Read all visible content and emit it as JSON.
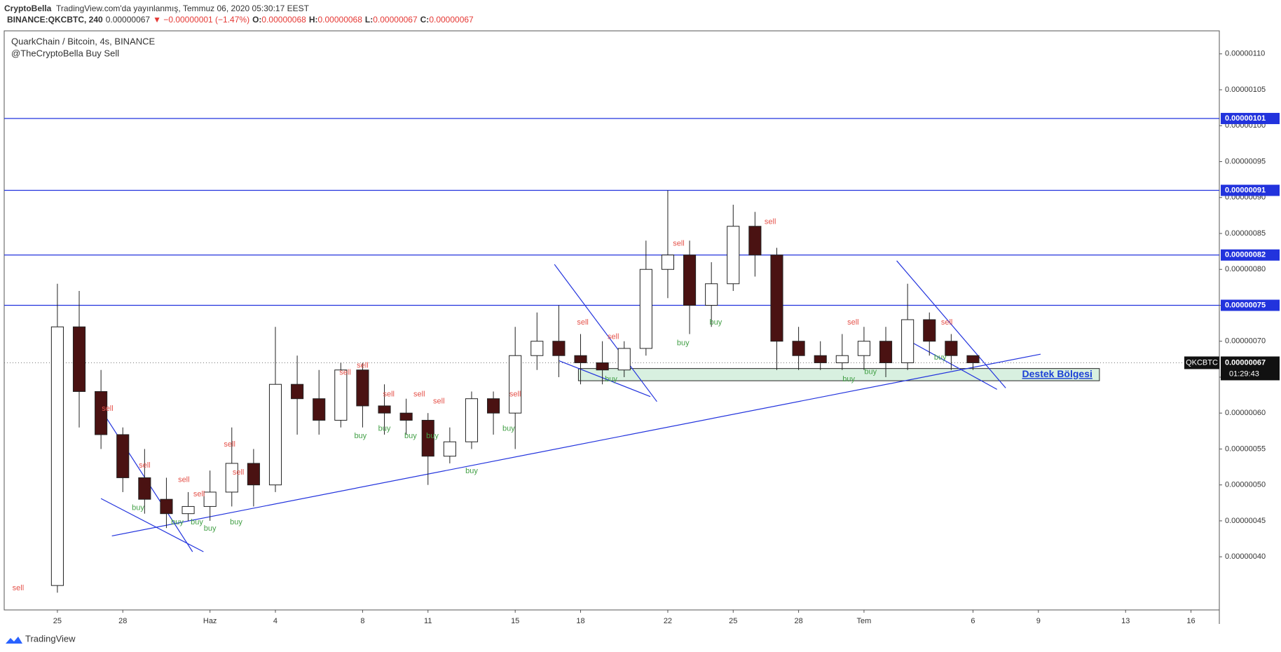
{
  "header": {
    "author": "CryptoBella",
    "published": "TradingView.com'da yayınlanmış, Temmuz 06, 2020 05:30:17 EEST",
    "symbol": "BINANCE:QKCBTC, 240",
    "price": "0.00000067",
    "change": "▼ −0.00000001 (−1.47%)",
    "ohlc": [
      {
        "k": "O:",
        "v": "0.00000068"
      },
      {
        "k": "H:",
        "v": "0.00000068"
      },
      {
        "k": "L:",
        "v": "0.00000067"
      },
      {
        "k": "C:",
        "v": "0.00000067"
      }
    ]
  },
  "chart_data": {
    "type": "candlestick",
    "title": "QuarkChain / Bitcoin, 4s, BINANCE",
    "subtitle": "@TheCryptoBella Buy Sell",
    "xlim": [
      -2.44,
      53.3
    ],
    "ylim": [
      3.26e-07,
      1.132e-06
    ],
    "xticks": [
      {
        "value": 0,
        "label": "25"
      },
      {
        "value": 3,
        "label": "28"
      },
      {
        "value": 7,
        "label": "Haz"
      },
      {
        "value": 10,
        "label": "4"
      },
      {
        "value": 14,
        "label": "8"
      },
      {
        "value": 17,
        "label": "11"
      },
      {
        "value": 21,
        "label": "15"
      },
      {
        "value": 24,
        "label": "18"
      },
      {
        "value": 28,
        "label": "22"
      },
      {
        "value": 31,
        "label": "25"
      },
      {
        "value": 34,
        "label": "28"
      },
      {
        "value": 37,
        "label": "Tem"
      },
      {
        "value": 42,
        "label": "6"
      },
      {
        "value": 45,
        "label": "9"
      },
      {
        "value": 49,
        "label": "13"
      },
      {
        "value": 52,
        "label": "16"
      }
    ],
    "yticks": [
      {
        "value": 4e-07,
        "label": "0.00000040"
      },
      {
        "value": 4.5e-07,
        "label": "0.00000045"
      },
      {
        "value": 5e-07,
        "label": "0.00000050"
      },
      {
        "value": 5.5e-07,
        "label": "0.00000055"
      },
      {
        "value": 6e-07,
        "label": "0.00000060"
      },
      {
        "value": 6.5e-07,
        "label": "0.00000065"
      },
      {
        "value": 7e-07,
        "label": "0.00000070"
      },
      {
        "value": 7.5e-07,
        "label": "0.00000075"
      },
      {
        "value": 8e-07,
        "label": "0.00000080"
      },
      {
        "value": 8.5e-07,
        "label": "0.00000085"
      },
      {
        "value": 9e-07,
        "label": "0.00000090"
      },
      {
        "value": 9.5e-07,
        "label": "0.00000095"
      },
      {
        "value": 1e-06,
        "label": "0.00000100"
      },
      {
        "value": 1.05e-06,
        "label": "0.00000105"
      },
      {
        "value": 1.1e-06,
        "label": "0.00000110"
      }
    ],
    "up_color": "#ffffff",
    "down_color": "#4a1212",
    "line_color": "#2233dd",
    "candles": [
      {
        "x": 0,
        "open": 3.6e-07,
        "high": 7.8e-07,
        "low": 3.5e-07,
        "close": 7.2e-07
      },
      {
        "x": 1,
        "open": 7.2e-07,
        "high": 7.7e-07,
        "low": 5.8e-07,
        "close": 6.3e-07
      },
      {
        "x": 2,
        "open": 6.3e-07,
        "high": 6.6e-07,
        "low": 5.5e-07,
        "close": 5.7e-07
      },
      {
        "x": 3,
        "open": 5.7e-07,
        "high": 5.8e-07,
        "low": 4.9e-07,
        "close": 5.1e-07
      },
      {
        "x": 4,
        "open": 5.1e-07,
        "high": 5.5e-07,
        "low": 4.6e-07,
        "close": 4.8e-07
      },
      {
        "x": 5,
        "open": 4.8e-07,
        "high": 5.1e-07,
        "low": 4.4e-07,
        "close": 4.6e-07
      },
      {
        "x": 6,
        "open": 4.6e-07,
        "high": 4.9e-07,
        "low": 4.5e-07,
        "close": 4.7e-07
      },
      {
        "x": 7,
        "open": 4.7e-07,
        "high": 5.2e-07,
        "low": 4.5e-07,
        "close": 4.9e-07
      },
      {
        "x": 8,
        "open": 4.9e-07,
        "high": 5.8e-07,
        "low": 4.7e-07,
        "close": 5.3e-07
      },
      {
        "x": 9,
        "open": 5.3e-07,
        "high": 5.5e-07,
        "low": 4.7e-07,
        "close": 5e-07
      },
      {
        "x": 10,
        "open": 5e-07,
        "high": 7.2e-07,
        "low": 4.9e-07,
        "close": 6.4e-07
      },
      {
        "x": 11,
        "open": 6.4e-07,
        "high": 6.8e-07,
        "low": 5.7e-07,
        "close": 6.2e-07
      },
      {
        "x": 12,
        "open": 6.2e-07,
        "high": 6.6e-07,
        "low": 5.7e-07,
        "close": 5.9e-07
      },
      {
        "x": 13,
        "open": 5.9e-07,
        "high": 6.7e-07,
        "low": 5.8e-07,
        "close": 6.6e-07
      },
      {
        "x": 14,
        "open": 6.6e-07,
        "high": 6.7e-07,
        "low": 5.8e-07,
        "close": 6.1e-07
      },
      {
        "x": 15,
        "open": 6.1e-07,
        "high": 6.4e-07,
        "low": 5.7e-07,
        "close": 6e-07
      },
      {
        "x": 16,
        "open": 6e-07,
        "high": 6.2e-07,
        "low": 5.7e-07,
        "close": 5.9e-07
      },
      {
        "x": 17,
        "open": 5.9e-07,
        "high": 6e-07,
        "low": 5e-07,
        "close": 5.4e-07
      },
      {
        "x": 18,
        "open": 5.4e-07,
        "high": 5.8e-07,
        "low": 5.3e-07,
        "close": 5.6e-07
      },
      {
        "x": 19,
        "open": 5.6e-07,
        "high": 6.3e-07,
        "low": 5.5e-07,
        "close": 6.2e-07
      },
      {
        "x": 20,
        "open": 6.2e-07,
        "high": 6.3e-07,
        "low": 5.7e-07,
        "close": 6e-07
      },
      {
        "x": 21,
        "open": 6e-07,
        "high": 7.2e-07,
        "low": 5.5e-07,
        "close": 6.8e-07
      },
      {
        "x": 22,
        "open": 6.8e-07,
        "high": 7.4e-07,
        "low": 6.6e-07,
        "close": 7e-07
      },
      {
        "x": 23,
        "open": 7e-07,
        "high": 7.5e-07,
        "low": 6.5e-07,
        "close": 6.8e-07
      },
      {
        "x": 24,
        "open": 6.8e-07,
        "high": 7.1e-07,
        "low": 6.4e-07,
        "close": 6.7e-07
      },
      {
        "x": 25,
        "open": 6.7e-07,
        "high": 7e-07,
        "low": 6.4e-07,
        "close": 6.6e-07
      },
      {
        "x": 26,
        "open": 6.6e-07,
        "high": 7e-07,
        "low": 6.5e-07,
        "close": 6.9e-07
      },
      {
        "x": 27,
        "open": 6.9e-07,
        "high": 8.4e-07,
        "low": 6.8e-07,
        "close": 8e-07
      },
      {
        "x": 28,
        "open": 8e-07,
        "high": 9.1e-07,
        "low": 7.6e-07,
        "close": 8.2e-07
      },
      {
        "x": 29,
        "open": 8.2e-07,
        "high": 8.4e-07,
        "low": 7.1e-07,
        "close": 7.5e-07
      },
      {
        "x": 30,
        "open": 7.5e-07,
        "high": 8.1e-07,
        "low": 7.2e-07,
        "close": 7.8e-07
      },
      {
        "x": 31,
        "open": 7.8e-07,
        "high": 8.9e-07,
        "low": 7.7e-07,
        "close": 8.6e-07
      },
      {
        "x": 32,
        "open": 8.6e-07,
        "high": 8.8e-07,
        "low": 7.9e-07,
        "close": 8.2e-07
      },
      {
        "x": 33,
        "open": 8.2e-07,
        "high": 8.3e-07,
        "low": 6.6e-07,
        "close": 7e-07
      },
      {
        "x": 34,
        "open": 7e-07,
        "high": 7.2e-07,
        "low": 6.6e-07,
        "close": 6.8e-07
      },
      {
        "x": 35,
        "open": 6.8e-07,
        "high": 7e-07,
        "low": 6.6e-07,
        "close": 6.7e-07
      },
      {
        "x": 36,
        "open": 6.7e-07,
        "high": 7.1e-07,
        "low": 6.6e-07,
        "close": 6.8e-07
      },
      {
        "x": 37,
        "open": 6.8e-07,
        "high": 7.2e-07,
        "low": 6.6e-07,
        "close": 7e-07
      },
      {
        "x": 38,
        "open": 7e-07,
        "high": 7.2e-07,
        "low": 6.5e-07,
        "close": 6.7e-07
      },
      {
        "x": 39,
        "open": 6.7e-07,
        "high": 7.8e-07,
        "low": 6.6e-07,
        "close": 7.3e-07
      },
      {
        "x": 40,
        "open": 7.3e-07,
        "high": 7.4e-07,
        "low": 6.8e-07,
        "close": 7e-07
      },
      {
        "x": 41,
        "open": 7e-07,
        "high": 7.1e-07,
        "low": 6.6e-07,
        "close": 6.8e-07
      },
      {
        "x": 42,
        "open": 6.8e-07,
        "high": 6.8e-07,
        "low": 6.6e-07,
        "close": 6.7e-07
      }
    ],
    "horizontal_lines": [
      {
        "value": 1.01e-06,
        "label": "0.00000101"
      },
      {
        "value": 9.1e-07,
        "label": "0.00000091"
      },
      {
        "value": 8.2e-07,
        "label": "0.00000082"
      },
      {
        "value": 7.5e-07,
        "label": "0.00000075"
      }
    ],
    "trendlines": [
      [
        2.5,
        4.29e-07,
        45.1,
        6.82e-07
      ],
      [
        1.87,
        6.11e-07,
        6.2,
        4.07e-07
      ],
      [
        2.0,
        4.81e-07,
        6.7,
        4.07e-07
      ],
      [
        22.8,
        8.07e-07,
        27.5,
        6.16e-07
      ],
      [
        23.0,
        6.73e-07,
        27.2,
        6.23e-07
      ],
      [
        38.5,
        8.12e-07,
        43.5,
        6.35e-07
      ],
      [
        39.1,
        7e-07,
        43.1,
        6.33e-07
      ]
    ],
    "support_zone": {
      "label": "Destek Bölgesi",
      "x": [
        23.9,
        47.8
      ],
      "y": [
        6.45e-07,
        6.62e-07
      ]
    },
    "signals": [
      {
        "x": -1.8,
        "price": 3.56e-07,
        "label": "sell"
      },
      {
        "x": 2.3,
        "price": 6.06e-07,
        "label": "sell"
      },
      {
        "x": 4.0,
        "price": 5.27e-07,
        "label": "sell"
      },
      {
        "x": 3.7,
        "price": 4.68e-07,
        "label": "buy"
      },
      {
        "x": 5.5,
        "price": 4.48e-07,
        "label": "buy"
      },
      {
        "x": 5.8,
        "price": 5.07e-07,
        "label": "sell"
      },
      {
        "x": 6.4,
        "price": 4.48e-07,
        "label": "buy"
      },
      {
        "x": 7.0,
        "price": 4.39e-07,
        "label": "buy"
      },
      {
        "x": 6.5,
        "price": 4.87e-07,
        "label": "sell"
      },
      {
        "x": 7.9,
        "price": 5.56e-07,
        "label": "sell"
      },
      {
        "x": 8.3,
        "price": 5.17e-07,
        "label": "sell"
      },
      {
        "x": 8.2,
        "price": 4.48e-07,
        "label": "buy"
      },
      {
        "x": 13.2,
        "price": 6.56e-07,
        "label": "sell"
      },
      {
        "x": 14.0,
        "price": 6.66e-07,
        "label": "sell"
      },
      {
        "x": 13.9,
        "price": 5.68e-07,
        "label": "buy"
      },
      {
        "x": 15.2,
        "price": 6.26e-07,
        "label": "sell"
      },
      {
        "x": 15.0,
        "price": 5.78e-07,
        "label": "buy"
      },
      {
        "x": 16.6,
        "price": 6.26e-07,
        "label": "sell"
      },
      {
        "x": 16.2,
        "price": 5.68e-07,
        "label": "buy"
      },
      {
        "x": 17.5,
        "price": 6.16e-07,
        "label": "sell"
      },
      {
        "x": 17.2,
        "price": 5.68e-07,
        "label": "buy"
      },
      {
        "x": 19.0,
        "price": 5.19e-07,
        "label": "buy"
      },
      {
        "x": 21.0,
        "price": 6.26e-07,
        "label": "sell"
      },
      {
        "x": 20.7,
        "price": 5.78e-07,
        "label": "buy"
      },
      {
        "x": 24.1,
        "price": 7.26e-07,
        "label": "sell"
      },
      {
        "x": 25.5,
        "price": 7.06e-07,
        "label": "sell"
      },
      {
        "x": 25.4,
        "price": 6.47e-07,
        "label": "buy"
      },
      {
        "x": 28.5,
        "price": 8.36e-07,
        "label": "sell"
      },
      {
        "x": 28.7,
        "price": 6.97e-07,
        "label": "buy"
      },
      {
        "x": 30.2,
        "price": 7.26e-07,
        "label": "buy"
      },
      {
        "x": 32.7,
        "price": 8.66e-07,
        "label": "sell"
      },
      {
        "x": 36.5,
        "price": 7.26e-07,
        "label": "sell"
      },
      {
        "x": 36.3,
        "price": 6.47e-07,
        "label": "buy"
      },
      {
        "x": 37.3,
        "price": 6.57e-07,
        "label": "buy"
      },
      {
        "x": 40.8,
        "price": 7.26e-07,
        "label": "sell"
      },
      {
        "x": 40.5,
        "price": 6.77e-07,
        "label": "buy"
      }
    ],
    "last_price": {
      "value": 6.7e-07,
      "label": "0.00000067",
      "symbol": "QKCBTC",
      "countdown": "01:29:43"
    }
  },
  "footer": {
    "brand": "TradingView"
  }
}
